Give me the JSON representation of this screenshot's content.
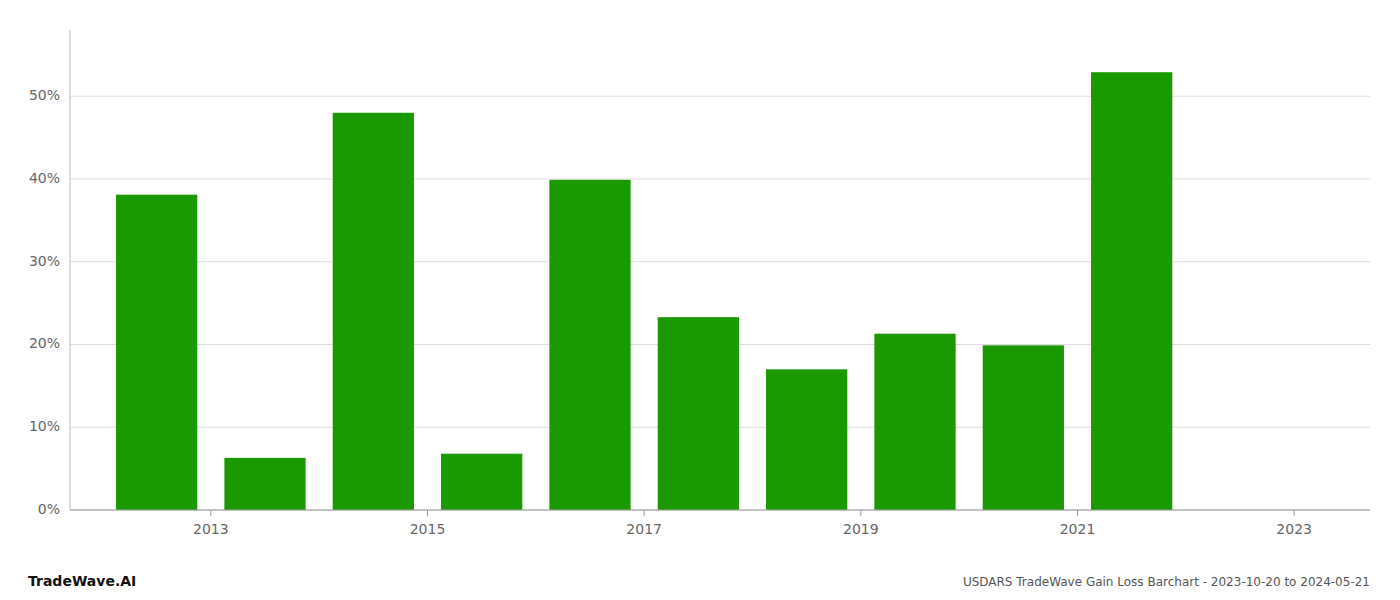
{
  "chart_data": {
    "type": "bar",
    "title": "USDARS TradeWave Gain Loss Barchart - 2023-10-20 to 2024-05-21",
    "annotations": [
      "TradeWave.AI"
    ],
    "x": [
      2012.3,
      2013.3,
      2014.3,
      2015.3,
      2016.3,
      2017.3,
      2018.3,
      2019.3,
      2020.3,
      2021.3,
      2022.3
    ],
    "values": [
      0.381,
      0.063,
      0.48,
      0.068,
      0.399,
      0.233,
      0.17,
      0.213,
      0.199,
      0.529,
      0.0
    ],
    "color": "#1a9a00",
    "xlim": [
      2011.5,
      2023.5
    ],
    "xticks": [
      {
        "value": 2012.8,
        "label": "2013"
      },
      {
        "value": 2014.8,
        "label": "2015"
      },
      {
        "value": 2016.8,
        "label": "2017"
      },
      {
        "value": 2018.8,
        "label": "2019"
      },
      {
        "value": 2020.8,
        "label": "2021"
      },
      {
        "value": 2022.8,
        "label": "2023"
      }
    ],
    "ylim": [
      0,
      0.58
    ],
    "yticks": [
      {
        "value": 0.0,
        "label": "0%"
      },
      {
        "value": 0.1,
        "label": "10%"
      },
      {
        "value": 0.2,
        "label": "20%"
      },
      {
        "value": 0.3,
        "label": "30%"
      },
      {
        "value": 0.4,
        "label": "40%"
      },
      {
        "value": 0.5,
        "label": "50%"
      }
    ],
    "grid": true
  }
}
